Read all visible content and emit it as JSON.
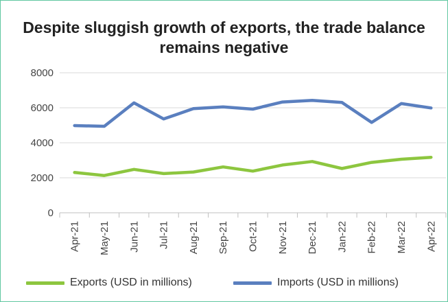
{
  "chart_data": {
    "type": "line",
    "title": "Despite sluggish growth of exports, the trade balance remains negative",
    "xlabel": "",
    "ylabel": "",
    "categories": [
      "Apr-21",
      "May-21",
      "Jun-21",
      "Jul-21",
      "Aug-21",
      "Sep-21",
      "Oct-21",
      "Nov-21",
      "Dec-21",
      "Jan-22",
      "Feb-22",
      "Mar-22",
      "Apr-22"
    ],
    "ylim": [
      0,
      8000
    ],
    "yticks": [
      "0",
      "2000",
      "4000",
      "6000",
      "8000"
    ],
    "grid": true,
    "legend_position": "bottom",
    "series": [
      {
        "name": "Exports  (USD in millions)",
        "color": "#8dc63f",
        "values": [
          2300,
          2130,
          2480,
          2240,
          2330,
          2620,
          2380,
          2730,
          2930,
          2530,
          2880,
          3060,
          3170
        ]
      },
      {
        "name": "Imports (USD in millions)",
        "color": "#5a7fbf",
        "values": [
          4980,
          4940,
          6280,
          5360,
          5950,
          6050,
          5920,
          6330,
          6420,
          6300,
          5160,
          6240,
          5990
        ]
      }
    ]
  }
}
